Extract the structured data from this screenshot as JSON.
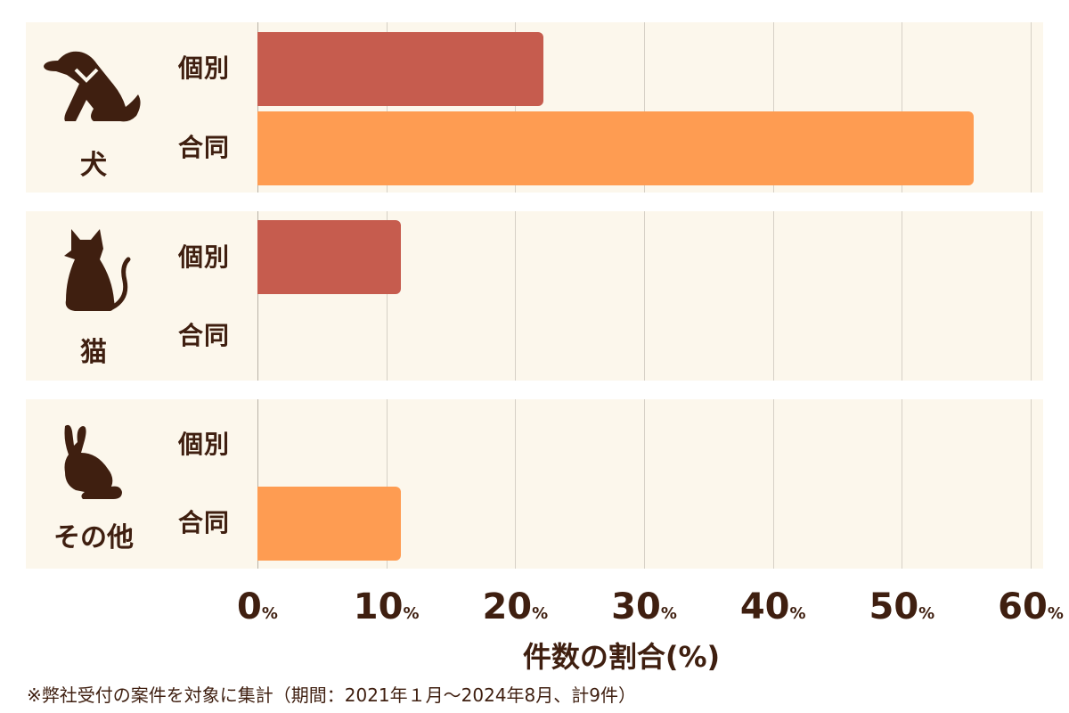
{
  "chart_data": {
    "type": "bar",
    "orientation": "horizontal",
    "title": "",
    "groups": [
      "犬",
      "猫",
      "その他"
    ],
    "categories": [
      "個別",
      "合同"
    ],
    "series": [
      {
        "group": "犬",
        "name": "個別",
        "value": 22.2,
        "color": "#c65c4e"
      },
      {
        "group": "犬",
        "name": "合同",
        "value": 55.6,
        "color": "#fe9c52"
      },
      {
        "group": "猫",
        "name": "個別",
        "value": 11.1,
        "color": "#c65c4e"
      },
      {
        "group": "猫",
        "name": "合同",
        "value": 0,
        "color": "#fe9c52"
      },
      {
        "group": "その他",
        "name": "個別",
        "value": 0,
        "color": "#c65c4e"
      },
      {
        "group": "その他",
        "name": "合同",
        "value": 11.1,
        "color": "#fe9c52"
      }
    ],
    "xlabel": "件数の割合(%)",
    "ylabel": "",
    "xlim": [
      0,
      60
    ],
    "xticks": [
      "0",
      "10",
      "20",
      "30",
      "40",
      "50",
      "60"
    ],
    "tick_suffix": "%",
    "grid": true,
    "legend": "none",
    "footnote": "※弊社受付の案件を対象に集計（期間：2021年１月～2024年8月、計9件）"
  },
  "groups": [
    {
      "label": "犬",
      "icon": "dog-icon",
      "rows": [
        {
          "label": "個別",
          "value": 22.2
        },
        {
          "label": "合同",
          "value": 55.6
        }
      ]
    },
    {
      "label": "猫",
      "icon": "cat-icon",
      "rows": [
        {
          "label": "個別",
          "value": 11.1
        },
        {
          "label": "合同",
          "value": 0
        }
      ]
    },
    {
      "label": "その他",
      "icon": "rabbit-icon",
      "rows": [
        {
          "label": "個別",
          "value": 0
        },
        {
          "label": "合同",
          "value": 11.1
        }
      ]
    }
  ],
  "axis": {
    "ticks": [
      "0",
      "10",
      "20",
      "30",
      "40",
      "50",
      "60"
    ],
    "suffix": "%",
    "title": "件数の割合(%)"
  },
  "footnote": "※弊社受付の案件を対象に集計（期間：2021年１月～2024年8月、計9件）",
  "colors": {
    "individual": "#c65c4e",
    "joint": "#fe9c52",
    "panel": "#fcf7ec",
    "text": "#3f1f10"
  }
}
